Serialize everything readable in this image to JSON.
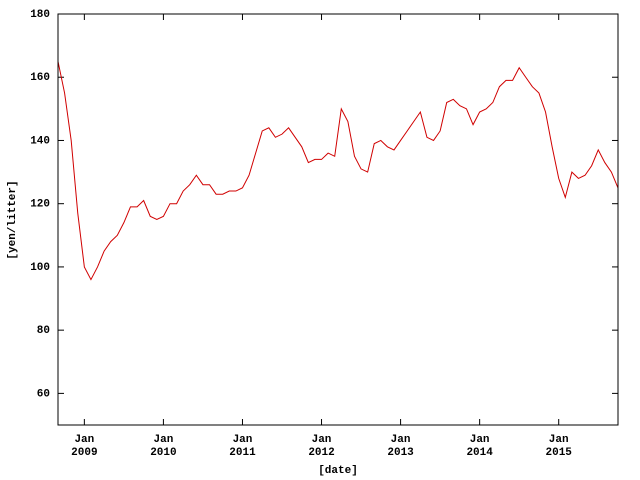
{
  "chart_data": {
    "type": "line",
    "xlabel": "[date]",
    "ylabel": "[yen/litter]",
    "x": [
      "2008-09",
      "2008-10",
      "2008-11",
      "2008-12",
      "2009-01",
      "2009-02",
      "2009-03",
      "2009-04",
      "2009-05",
      "2009-06",
      "2009-07",
      "2009-08",
      "2009-09",
      "2009-10",
      "2009-11",
      "2009-12",
      "2010-01",
      "2010-02",
      "2010-03",
      "2010-04",
      "2010-05",
      "2010-06",
      "2010-07",
      "2010-08",
      "2010-09",
      "2010-10",
      "2010-11",
      "2010-12",
      "2011-01",
      "2011-02",
      "2011-03",
      "2011-04",
      "2011-05",
      "2011-06",
      "2011-07",
      "2011-08",
      "2011-09",
      "2011-10",
      "2011-11",
      "2011-12",
      "2012-01",
      "2012-02",
      "2012-03",
      "2012-04",
      "2012-05",
      "2012-06",
      "2012-07",
      "2012-08",
      "2012-09",
      "2012-10",
      "2012-11",
      "2012-12",
      "2013-01",
      "2013-02",
      "2013-03",
      "2013-04",
      "2013-05",
      "2013-06",
      "2013-07",
      "2013-08",
      "2013-09",
      "2013-10",
      "2013-11",
      "2013-12",
      "2014-01",
      "2014-02",
      "2014-03",
      "2014-04",
      "2014-05",
      "2014-06",
      "2014-07",
      "2014-08",
      "2014-09",
      "2014-10",
      "2014-11",
      "2014-12",
      "2015-01",
      "2015-02",
      "2015-03",
      "2015-04",
      "2015-05",
      "2015-06",
      "2015-07",
      "2015-08",
      "2015-09",
      "2015-10"
    ],
    "series": [
      {
        "color": "#d00000",
        "values": [
          165,
          155,
          140,
          117,
          100,
          96,
          100,
          105,
          108,
          110,
          114,
          119,
          119,
          121,
          116,
          115,
          116,
          120,
          120,
          124,
          126,
          129,
          126,
          126,
          123,
          123,
          124,
          124,
          125,
          129,
          136,
          143,
          144,
          141,
          142,
          144,
          141,
          138,
          133,
          134,
          134,
          136,
          135,
          150,
          146,
          135,
          131,
          130,
          139,
          140,
          138,
          137,
          140,
          143,
          146,
          149,
          141,
          140,
          143,
          152,
          153,
          151,
          150,
          145,
          149,
          150,
          152,
          157,
          159,
          159,
          163,
          160,
          157,
          155,
          149,
          138,
          128,
          122,
          130,
          128,
          129,
          132,
          137,
          133,
          130,
          125
        ]
      }
    ],
    "xlim": [
      "2008-09",
      "2015-10"
    ],
    "xticks": [
      {
        "value": "2009-01",
        "label": [
          "Jan",
          "2009"
        ]
      },
      {
        "value": "2010-01",
        "label": [
          "Jan",
          "2010"
        ]
      },
      {
        "value": "2011-01",
        "label": [
          "Jan",
          "2011"
        ]
      },
      {
        "value": "2012-01",
        "label": [
          "Jan",
          "2012"
        ]
      },
      {
        "value": "2013-01",
        "label": [
          "Jan",
          "2013"
        ]
      },
      {
        "value": "2014-01",
        "label": [
          "Jan",
          "2014"
        ]
      },
      {
        "value": "2015-01",
        "label": [
          "Jan",
          "2015"
        ]
      }
    ],
    "ylim": [
      50,
      180
    ],
    "yticks": [
      60,
      80,
      100,
      120,
      140,
      160,
      180
    ]
  }
}
